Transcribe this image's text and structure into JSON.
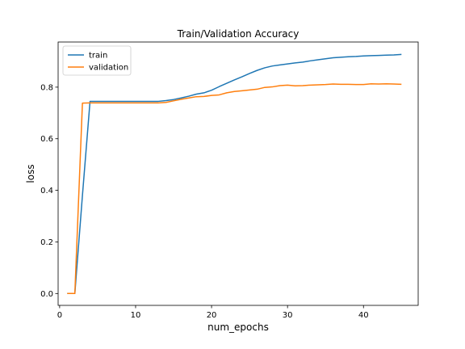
{
  "chart_data": {
    "type": "line",
    "title": "Train/Validation Accuracy",
    "xlabel": "num_epochs",
    "ylabel": "loss",
    "xlim": [
      -0.2,
      47.2
    ],
    "ylim": [
      -0.046,
      0.975
    ],
    "xticks": [
      0,
      10,
      20,
      30,
      40
    ],
    "yticks": [
      0.0,
      0.2,
      0.4,
      0.6,
      0.8
    ],
    "ytick_labels": [
      "0.0",
      "0.2",
      "0.4",
      "0.6",
      "0.8"
    ],
    "grid": false,
    "legend": "top-left",
    "x": [
      1,
      2,
      3,
      4,
      5,
      6,
      7,
      8,
      9,
      10,
      11,
      12,
      13,
      14,
      15,
      16,
      17,
      18,
      19,
      20,
      21,
      22,
      23,
      24,
      25,
      26,
      27,
      28,
      29,
      30,
      31,
      32,
      33,
      34,
      35,
      36,
      37,
      38,
      39,
      40,
      41,
      42,
      43,
      44,
      45
    ],
    "series": [
      {
        "name": "train",
        "color": "#1f77b4",
        "values": [
          0.0,
          0.0,
          0.38,
          0.745,
          0.745,
          0.745,
          0.745,
          0.745,
          0.745,
          0.745,
          0.745,
          0.745,
          0.745,
          0.748,
          0.752,
          0.758,
          0.765,
          0.773,
          0.778,
          0.788,
          0.802,
          0.815,
          0.828,
          0.84,
          0.853,
          0.865,
          0.875,
          0.882,
          0.886,
          0.89,
          0.894,
          0.897,
          0.902,
          0.906,
          0.91,
          0.914,
          0.916,
          0.918,
          0.919,
          0.921,
          0.922,
          0.923,
          0.924,
          0.925,
          0.927
        ]
      },
      {
        "name": "validation",
        "color": "#ff7f0e",
        "values": [
          0.0,
          0.0,
          0.738,
          0.739,
          0.739,
          0.739,
          0.739,
          0.739,
          0.739,
          0.739,
          0.739,
          0.739,
          0.739,
          0.741,
          0.747,
          0.753,
          0.758,
          0.763,
          0.764,
          0.768,
          0.77,
          0.778,
          0.783,
          0.786,
          0.789,
          0.792,
          0.799,
          0.801,
          0.806,
          0.808,
          0.805,
          0.806,
          0.808,
          0.809,
          0.81,
          0.812,
          0.811,
          0.811,
          0.81,
          0.81,
          0.813,
          0.812,
          0.813,
          0.812,
          0.811
        ]
      }
    ]
  }
}
